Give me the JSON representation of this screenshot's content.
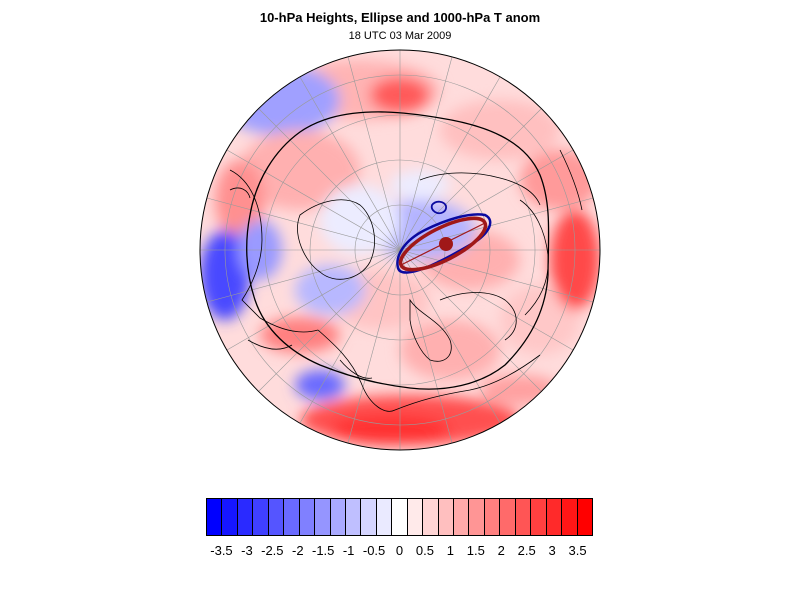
{
  "title": "10-hPa Heights, Ellipse and 1000-hPa T anom",
  "subtitle": "18 UTC 03 Mar 2009",
  "map": {
    "projection": "polar orthographic (north pole)",
    "field": "1000-hPa temperature anomaly",
    "contours": [
      "10-hPa height contour (black)",
      "vortex edge contour (dark blue)"
    ],
    "overlay": "ellipse fit (dark red) with centroid dot"
  },
  "colorbar": {
    "labels": [
      "-3.5",
      "-3",
      "-2.5",
      "-2",
      "-1.5",
      "-1",
      "-0.5",
      "0",
      "0.5",
      "1",
      "1.5",
      "2",
      "2.5",
      "3",
      "3.5"
    ],
    "colors": [
      "#0000ff",
      "#1616ff",
      "#2a2aff",
      "#4040ff",
      "#5555ff",
      "#6a6aff",
      "#8080ff",
      "#9595ff",
      "#aaaaff",
      "#bfbfff",
      "#d5d5ff",
      "#eaeaff",
      "#ffffff",
      "#ffeaea",
      "#ffd5d5",
      "#ffbfbf",
      "#ffaaaa",
      "#ff9595",
      "#ff8080",
      "#ff6a6a",
      "#ff5555",
      "#ff4040",
      "#ff2a2a",
      "#ff1616",
      "#ff0000"
    ]
  },
  "colors": {
    "ellipse": "#a01818",
    "vortex_edge": "#0a0aa0",
    "height_contour": "#000000",
    "coast": "#000000"
  }
}
